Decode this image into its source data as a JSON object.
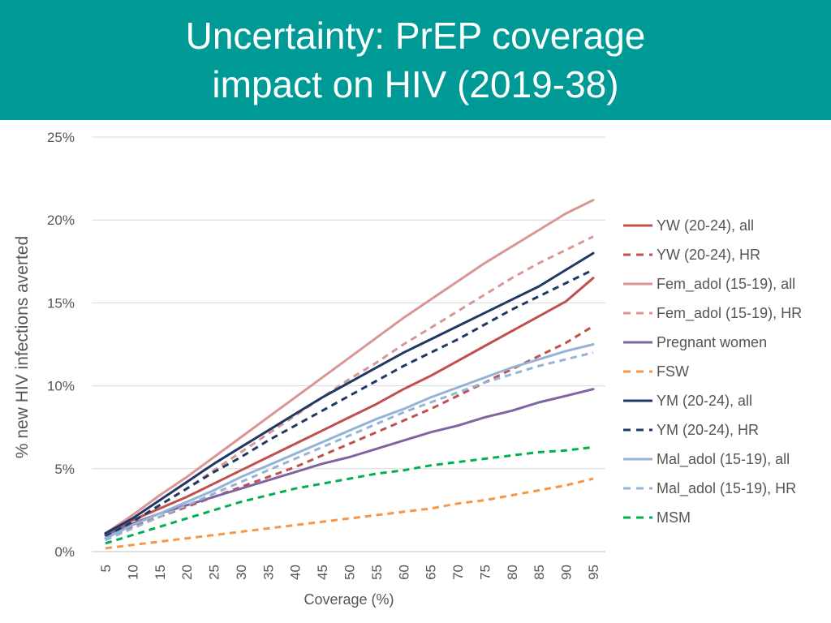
{
  "slide": {
    "title_line1": "Uncertainty: PrEP coverage",
    "title_line2": "impact on HIV (2019-38)",
    "header_color": "#009a96"
  },
  "chart_data": {
    "type": "line",
    "title": "Uncertainty: PrEP coverage impact on HIV (2019-38)",
    "xlabel": "Coverage (%)",
    "ylabel": "% new HIV infections averted",
    "x": [
      5,
      10,
      15,
      20,
      25,
      30,
      35,
      40,
      45,
      50,
      55,
      60,
      65,
      70,
      75,
      80,
      85,
      90,
      95
    ],
    "x_tick_labels": [
      "5",
      "10",
      "15",
      "20",
      "25",
      "30",
      "35",
      "40",
      "45",
      "50",
      "55",
      "60",
      "65",
      "70",
      "75",
      "80",
      "85",
      "90",
      "95"
    ],
    "ylim": [
      0,
      25
    ],
    "y_ticks": [
      0,
      5,
      10,
      15,
      20,
      25
    ],
    "y_tick_labels": [
      "0%",
      "5%",
      "10%",
      "15%",
      "20%",
      "25%"
    ],
    "grid": true,
    "legend_position": "right",
    "series": [
      {
        "name": "YW (20-24), all",
        "color": "#c0504d",
        "dash": false,
        "values": [
          1.0,
          1.9,
          2.6,
          3.3,
          4.1,
          4.9,
          5.7,
          6.5,
          7.3,
          8.1,
          8.9,
          9.8,
          10.6,
          11.5,
          12.4,
          13.3,
          14.2,
          15.1,
          16.5
        ]
      },
      {
        "name": "YW (20-24), HR",
        "color": "#c0504d",
        "dash": true,
        "values": [
          0.8,
          1.5,
          2.1,
          2.7,
          3.3,
          3.9,
          4.5,
          5.1,
          5.8,
          6.5,
          7.2,
          7.9,
          8.6,
          9.4,
          10.2,
          11.0,
          11.8,
          12.6,
          13.6
        ]
      },
      {
        "name": "Fem_adol (15-19), all",
        "color": "#d99694",
        "dash": false,
        "values": [
          1.1,
          2.2,
          3.4,
          4.5,
          5.7,
          6.9,
          8.1,
          9.3,
          10.5,
          11.7,
          12.9,
          14.1,
          15.2,
          16.3,
          17.4,
          18.4,
          19.4,
          20.4,
          21.2
        ]
      },
      {
        "name": "Fem_adol (15-19), HR",
        "color": "#d99694",
        "dash": true,
        "values": [
          0.9,
          1.8,
          2.8,
          3.8,
          4.9,
          6.0,
          7.1,
          8.2,
          9.3,
          10.4,
          11.4,
          12.5,
          13.5,
          14.5,
          15.5,
          16.5,
          17.4,
          18.2,
          19.0
        ]
      },
      {
        "name": "Pregnant women",
        "color": "#8064a2",
        "dash": false,
        "values": [
          1.0,
          1.7,
          2.3,
          2.8,
          3.3,
          3.8,
          4.3,
          4.8,
          5.3,
          5.7,
          6.2,
          6.7,
          7.2,
          7.6,
          8.1,
          8.5,
          9.0,
          9.4,
          9.8
        ]
      },
      {
        "name": "FSW",
        "color": "#f79646",
        "dash": true,
        "values": [
          0.2,
          0.4,
          0.6,
          0.8,
          1.0,
          1.2,
          1.4,
          1.6,
          1.8,
          2.0,
          2.2,
          2.4,
          2.6,
          2.9,
          3.1,
          3.4,
          3.7,
          4.0,
          4.4
        ]
      },
      {
        "name": "YM (20-24), all",
        "color": "#1f3864",
        "dash": false,
        "values": [
          1.1,
          2.0,
          3.1,
          4.2,
          5.3,
          6.3,
          7.3,
          8.3,
          9.3,
          10.2,
          11.1,
          12.0,
          12.8,
          13.6,
          14.4,
          15.2,
          16.0,
          17.0,
          18.0
        ]
      },
      {
        "name": "YM (20-24), HR",
        "color": "#1f3864",
        "dash": true,
        "values": [
          0.9,
          1.8,
          2.8,
          3.8,
          4.8,
          5.7,
          6.7,
          7.6,
          8.5,
          9.4,
          10.3,
          11.2,
          12.0,
          12.8,
          13.7,
          14.6,
          15.4,
          16.2,
          17.0
        ]
      },
      {
        "name": "Mal_adol (15-19), all",
        "color": "#95b3d7",
        "dash": false,
        "values": [
          0.8,
          1.6,
          2.3,
          3.0,
          3.7,
          4.5,
          5.2,
          5.9,
          6.6,
          7.3,
          8.0,
          8.6,
          9.3,
          9.9,
          10.5,
          11.1,
          11.6,
          12.1,
          12.5
        ]
      },
      {
        "name": "Mal_adol (15-19), HR",
        "color": "#95b3d7",
        "dash": true,
        "values": [
          0.7,
          1.4,
          2.1,
          2.8,
          3.5,
          4.2,
          4.9,
          5.6,
          6.3,
          7.0,
          7.7,
          8.4,
          9.0,
          9.6,
          10.2,
          10.7,
          11.2,
          11.6,
          12.0
        ]
      },
      {
        "name": "MSM",
        "color": "#00b050",
        "dash": true,
        "values": [
          0.5,
          1.0,
          1.5,
          2.0,
          2.5,
          3.0,
          3.4,
          3.8,
          4.1,
          4.4,
          4.7,
          4.9,
          5.2,
          5.4,
          5.6,
          5.8,
          6.0,
          6.1,
          6.3
        ]
      }
    ]
  }
}
